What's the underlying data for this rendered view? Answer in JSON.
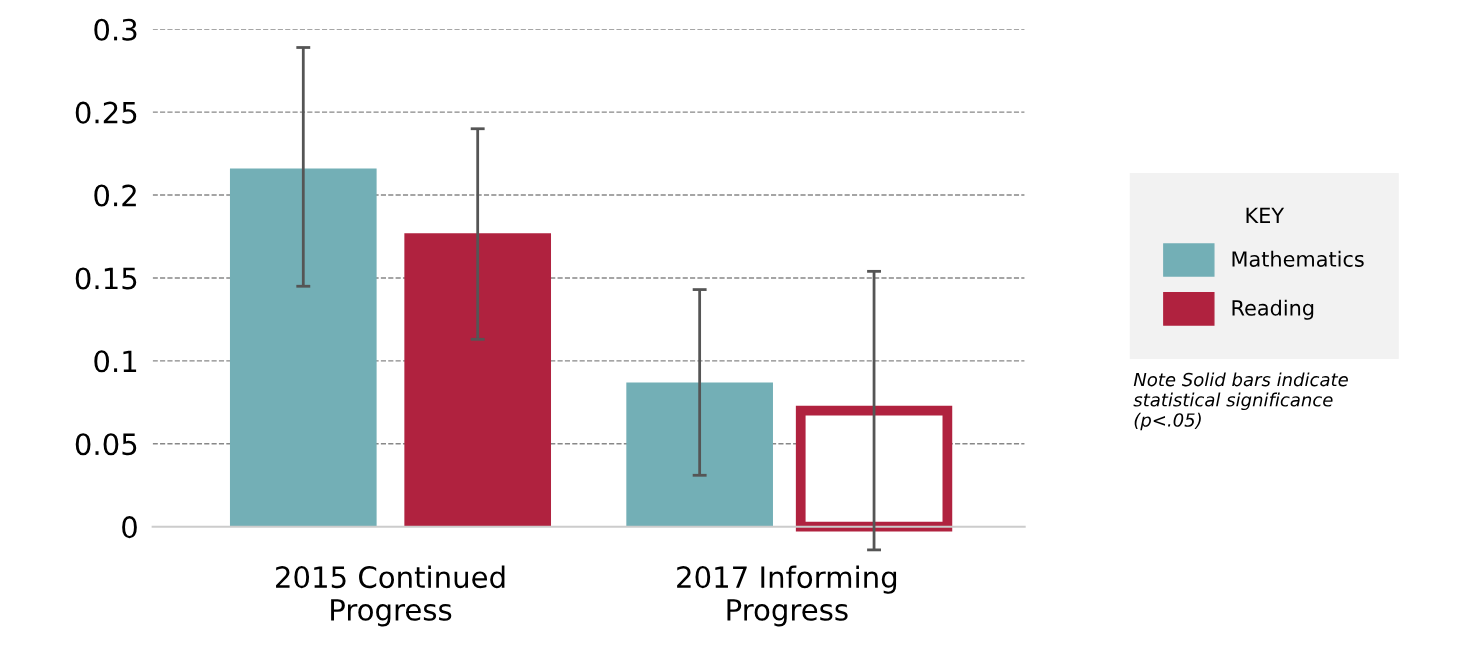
{
  "chart_data": {
    "type": "bar",
    "categories": [
      "2015 Continued Progress",
      "2017 Informing Progress"
    ],
    "series": [
      {
        "name": "Mathematics",
        "color": "#73afb6",
        "values": [
          0.216,
          0.087
        ],
        "errors": [
          [
            0.145,
            0.289
          ],
          [
            0.031,
            0.143
          ]
        ]
      },
      {
        "name": "Reading",
        "color": "#b0223f",
        "colors": [
          "#b0223f",
          "#ffffff"
        ],
        "values": [
          0.177,
          0.07
        ],
        "errors": [
          [
            0.113,
            0.24
          ],
          [
            -0.014,
            0.154
          ]
        ]
      }
    ],
    "ylim": [
      0,
      0.3
    ],
    "yticks": [
      0,
      0.05,
      0.1,
      0.15,
      0.2,
      0.25,
      0.3
    ],
    "grid": "y",
    "legend": "right",
    "legend_title": "KEY",
    "annotations": [
      "Note Solid bars indicate statistical significance (p<.05)"
    ]
  }
}
